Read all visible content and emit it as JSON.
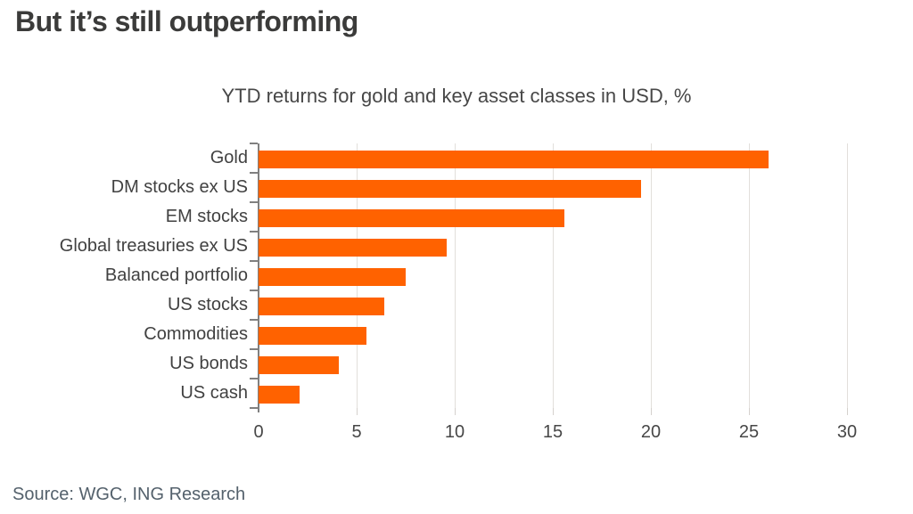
{
  "page": {
    "title": "But it’s still outperforming"
  },
  "chart_data": {
    "type": "bar",
    "orientation": "horizontal",
    "title": "YTD returns for gold and key asset classes in USD, %",
    "categories": [
      "Gold",
      "DM stocks ex US",
      "EM stocks",
      "Global treasuries ex US",
      "Balanced portfolio",
      "US stocks",
      "Commodities",
      "US bonds",
      "US cash"
    ],
    "values": [
      26.0,
      19.5,
      15.6,
      9.6,
      7.5,
      6.4,
      5.5,
      4.1,
      2.1
    ],
    "xlabel": "",
    "ylabel": "",
    "xlim": [
      0,
      30
    ],
    "xticks": [
      0,
      5,
      10,
      15,
      20,
      25,
      30
    ],
    "grid": true,
    "legend": "none"
  },
  "source": {
    "text": "Source: WGC, ING Research"
  },
  "colors": {
    "bar": "#FF6200",
    "title_text": "#3b3b3a",
    "chart_text": "#474747",
    "label_text": "#414141",
    "source_text": "#54616c",
    "gridline": "#e2dfdb",
    "axis": "#808080",
    "background": "#ffffff"
  }
}
